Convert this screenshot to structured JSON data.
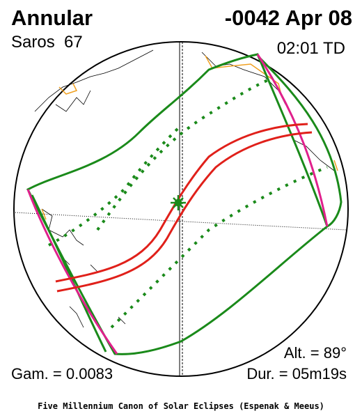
{
  "header": {
    "type": "Annular",
    "date": "-0042 Apr 08",
    "saros": "Saros  67",
    "time": "02:01 TD"
  },
  "footer": {
    "altitude": "Alt. = 89°",
    "gamma": "Gam. = 0.0083",
    "duration": "Dur. = 05m19s",
    "credit": "Five Millennium Canon of Solar Eclipses (Espenak & Meeus)"
  }
}
